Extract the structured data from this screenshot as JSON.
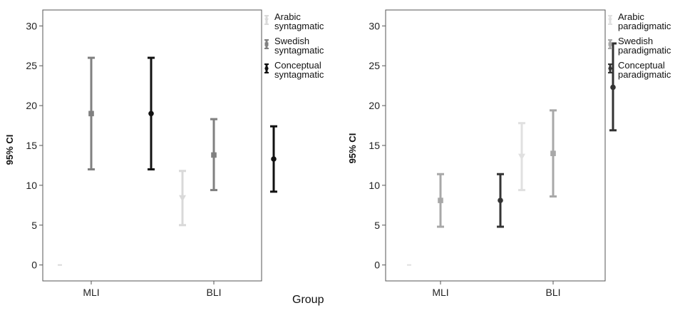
{
  "shared_xlabel": "Group",
  "chart_data": [
    {
      "type": "errorbar",
      "title": "",
      "xlabel": "",
      "ylabel": "95% CI",
      "categories": [
        "MLI",
        "BLI"
      ],
      "ylim": [
        -2,
        32
      ],
      "yticks": [
        0,
        5,
        10,
        15,
        20,
        25,
        30
      ],
      "grid": false,
      "legend_position": "right",
      "series": [
        {
          "name": "Arabic syntagmatic",
          "legend_lines": [
            "Arabic",
            "syntagmatic"
          ],
          "marker": "triangle-down",
          "color": "#d9d9d9",
          "points": [
            {
              "category": "MLI",
              "mean": 0,
              "lower": 0,
              "upper": 0
            },
            {
              "category": "BLI",
              "mean": 8.4,
              "lower": 5,
              "upper": 11.8
            }
          ]
        },
        {
          "name": "Swedish syntagmatic",
          "legend_lines": [
            "Swedish",
            "syntagmatic"
          ],
          "marker": "square",
          "color": "#808080",
          "points": [
            {
              "category": "MLI",
              "mean": 19,
              "lower": 12,
              "upper": 26
            },
            {
              "category": "BLI",
              "mean": 13.8,
              "lower": 9.4,
              "upper": 18.3
            }
          ]
        },
        {
          "name": "Conceptual syntagmatic",
          "legend_lines": [
            "Conceptual",
            "syntagmatic"
          ],
          "marker": "circle",
          "color": "#111111",
          "points": [
            {
              "category": "MLI",
              "mean": 19,
              "lower": 12,
              "upper": 26
            },
            {
              "category": "BLI",
              "mean": 13.3,
              "lower": 9.2,
              "upper": 17.4
            }
          ]
        }
      ]
    },
    {
      "type": "errorbar",
      "title": "",
      "xlabel": "",
      "ylabel": "95% CI",
      "categories": [
        "MLI",
        "BLI"
      ],
      "ylim": [
        -2,
        32
      ],
      "yticks": [
        0,
        5,
        10,
        15,
        20,
        25,
        30
      ],
      "grid": false,
      "legend_position": "right",
      "series": [
        {
          "name": "Arabic paradigmatic",
          "legend_lines": [
            "Arabic",
            "paradigmatic"
          ],
          "marker": "triangle-down",
          "color": "#e0e0e0",
          "points": [
            {
              "category": "MLI",
              "mean": 0,
              "lower": 0,
              "upper": 0
            },
            {
              "category": "BLI",
              "mean": 13.6,
              "lower": 9.4,
              "upper": 17.8
            }
          ]
        },
        {
          "name": "Swedish paradigmatic",
          "legend_lines": [
            "Swedish",
            "paradigmatic"
          ],
          "marker": "square",
          "color": "#a8a8a8",
          "points": [
            {
              "category": "MLI",
              "mean": 8.1,
              "lower": 4.8,
              "upper": 11.4
            },
            {
              "category": "BLI",
              "mean": 14,
              "lower": 8.6,
              "upper": 19.4
            }
          ]
        },
        {
          "name": "Conceptual paradigmatic",
          "legend_lines": [
            "Conceptual",
            "paradigmatic"
          ],
          "marker": "circle",
          "color": "#333333",
          "points": [
            {
              "category": "MLI",
              "mean": 8.1,
              "lower": 4.8,
              "upper": 11.4
            },
            {
              "category": "BLI",
              "mean": 22.3,
              "lower": 16.9,
              "upper": 27.8
            }
          ]
        }
      ]
    }
  ]
}
